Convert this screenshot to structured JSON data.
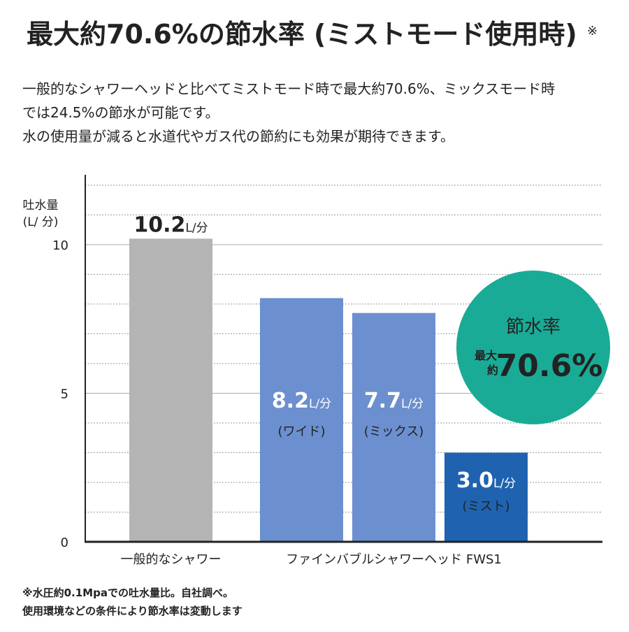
{
  "chart_data": {
    "type": "bar",
    "title": "最大約70.6%の節水率 (ミストモード使用時)",
    "title_mark": "※",
    "description": [
      "一般的なシャワーヘッドと比べてミストモード時で最大約70.6%、ミックスモード時",
      "では24.5%の節水が可能です。",
      "水の使用量が減ると水道代やガス代の節約にも効果が期待できます。"
    ],
    "y_label": [
      "吐水量",
      "(L/ 分)"
    ],
    "categories": [
      "一般的なシャワー",
      "ファインバブルシャワーヘッド FWS1",
      null,
      null
    ],
    "values": [
      10.2,
      8.2,
      7.7,
      3.0
    ],
    "value_labels": [
      "10.2",
      "8.2",
      "7.7",
      "3.0"
    ],
    "value_unit": "L/分",
    "sub_labels": [
      null,
      "(ワイド)",
      "(ミックス)",
      "(ミスト)"
    ],
    "colors": [
      "#b4b4b4",
      "#6b8fcf",
      "#6b8fcf",
      "#1f63b0"
    ],
    "ylim": [
      0,
      12.35
    ],
    "yticks": [
      0,
      5,
      10
    ],
    "minor_yticks": [
      1,
      2,
      3,
      4,
      6,
      7,
      8,
      9,
      11,
      12
    ],
    "grid": true,
    "badge": {
      "title": "節水率",
      "prefix": [
        "最大",
        "約"
      ],
      "value": "70.6%",
      "color": "#1aab96"
    },
    "footnotes": [
      "※水圧約0.1Mpaでの吐水量比。自社調べ。",
      "使用環境などの条件により節水率は変動します"
    ]
  }
}
